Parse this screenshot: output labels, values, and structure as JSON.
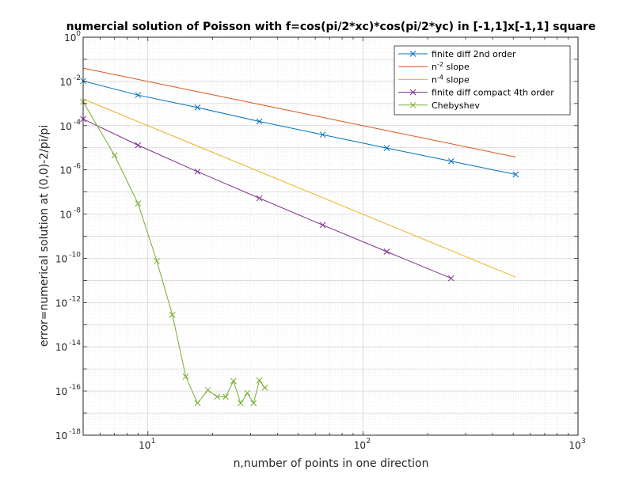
{
  "chart_data": {
    "type": "line",
    "title": "numercial solution of Poisson with f=cos(pi/2*xc)*cos(pi/2*yc) in [-1,1]x[-1,1] square",
    "xlabel": "n,number of points in one direction",
    "ylabel": "error=numerical solution at (0,0)-2/pi/pi",
    "xscale": "log",
    "yscale": "log",
    "xlim": [
      5,
      1000
    ],
    "ylim": [
      1e-18,
      1
    ],
    "grid": "on (major and minor)",
    "legend_position": "top-right",
    "x_ticks": [
      {
        "value": 10,
        "base": "10",
        "exp": "1"
      },
      {
        "value": 100,
        "base": "10",
        "exp": "2"
      },
      {
        "value": 1000,
        "base": "10",
        "exp": "3"
      }
    ],
    "y_ticks": [
      {
        "value": 1e-18,
        "base": "10",
        "exp": "-18"
      },
      {
        "value": 1e-16,
        "base": "10",
        "exp": "-16"
      },
      {
        "value": 1e-14,
        "base": "10",
        "exp": "-14"
      },
      {
        "value": 1e-12,
        "base": "10",
        "exp": "-12"
      },
      {
        "value": 1e-10,
        "base": "10",
        "exp": "-10"
      },
      {
        "value": 1e-08,
        "base": "10",
        "exp": "-8"
      },
      {
        "value": 1e-06,
        "base": "10",
        "exp": "-6"
      },
      {
        "value": 0.0001,
        "base": "10",
        "exp": "-4"
      },
      {
        "value": 0.01,
        "base": "10",
        "exp": "-2"
      },
      {
        "value": 1,
        "base": "10",
        "exp": "0"
      }
    ],
    "series": [
      {
        "name": "finite diff 2nd order",
        "legend_parts": [
          {
            "text": "finite diff 2nd order",
            "sup": false
          }
        ],
        "color": "#0072BD",
        "marker": "x",
        "x": [
          5,
          9,
          17,
          33,
          65,
          129,
          257,
          513
        ],
        "y": [
          0.0105,
          0.0024,
          0.00066,
          0.000155,
          3.9e-05,
          9.7e-06,
          2.45e-06,
          6.2e-07
        ]
      },
      {
        "name": "n-2 slope",
        "legend_parts": [
          {
            "text": "n",
            "sup": false
          },
          {
            "text": "-2",
            "sup": true
          },
          {
            "text": " slope",
            "sup": false
          }
        ],
        "color": "#D95319",
        "marker": "none",
        "x": [
          5,
          513
        ],
        "y": [
          0.04,
          3.8e-06
        ]
      },
      {
        "name": "n-4 slope",
        "legend_parts": [
          {
            "text": "n",
            "sup": false
          },
          {
            "text": "-4",
            "sup": true
          },
          {
            "text": " slope",
            "sup": false
          }
        ],
        "color": "#EDB120",
        "marker": "none",
        "x": [
          5,
          513
        ],
        "y": [
          0.0016,
          1.4e-11
        ]
      },
      {
        "name": "finite diff compact 4th order",
        "legend_parts": [
          {
            "text": "finite diff compact 4th order",
            "sup": false
          }
        ],
        "color": "#7E2F8E",
        "marker": "x",
        "x": [
          5,
          9,
          17,
          33,
          65,
          129,
          257
        ],
        "y": [
          0.0002,
          1.3e-05,
          8.3e-07,
          5.2e-08,
          3.2e-09,
          2e-10,
          1.25e-11
        ]
      },
      {
        "name": "Chebyshev",
        "legend_parts": [
          {
            "text": "Chebyshev",
            "sup": false
          }
        ],
        "color": "#77AC30",
        "marker": "x",
        "x": [
          5,
          7,
          9,
          11,
          13,
          15,
          17,
          19,
          21,
          23,
          25,
          27,
          29,
          31,
          33,
          35
        ],
        "y": [
          0.0012,
          4.5e-06,
          3e-08,
          7.5e-11,
          2.8e-13,
          4.5e-16,
          2.8e-17,
          1.1e-16,
          5.5e-17,
          5.5e-17,
          2.8e-16,
          2.8e-17,
          8e-17,
          2.8e-17,
          3e-16,
          1.4e-16
        ]
      }
    ]
  }
}
